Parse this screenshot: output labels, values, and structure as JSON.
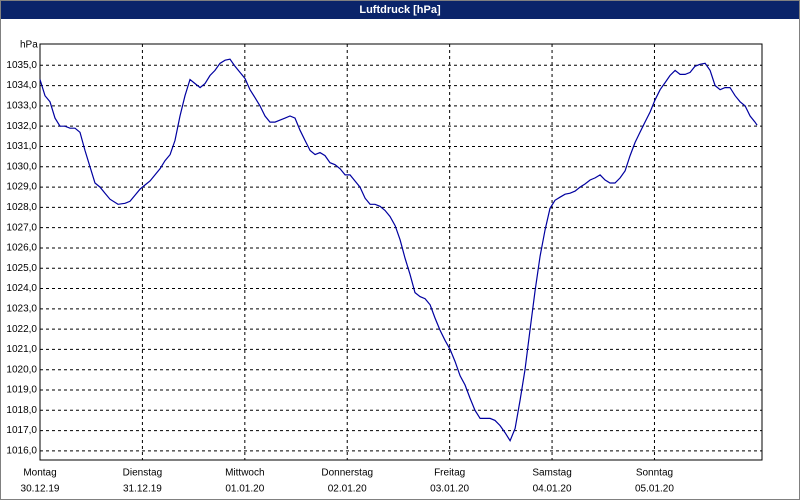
{
  "chart_data": {
    "type": "line",
    "title": "Luftdruck [hPa]",
    "y_label": "hPa",
    "grid": true,
    "xlim": [
      0,
      7.05
    ],
    "ylim": [
      1015.55,
      1036.05
    ],
    "yticks": [
      {
        "value": 1016,
        "label": "1016,0"
      },
      {
        "value": 1017,
        "label": "1017,0"
      },
      {
        "value": 1018,
        "label": "1018,0"
      },
      {
        "value": 1019,
        "label": "1019,0"
      },
      {
        "value": 1020,
        "label": "1020,0"
      },
      {
        "value": 1021,
        "label": "1021,0"
      },
      {
        "value": 1022,
        "label": "1022,0"
      },
      {
        "value": 1023,
        "label": "1023,0"
      },
      {
        "value": 1024,
        "label": "1024,0"
      },
      {
        "value": 1025,
        "label": "1025,0"
      },
      {
        "value": 1026,
        "label": "1026,0"
      },
      {
        "value": 1027,
        "label": "1027,0"
      },
      {
        "value": 1028,
        "label": "1028,0"
      },
      {
        "value": 1029,
        "label": "1029,0"
      },
      {
        "value": 1030,
        "label": "1030,0"
      },
      {
        "value": 1031,
        "label": "1031,0"
      },
      {
        "value": 1032,
        "label": "1032,0"
      },
      {
        "value": 1033,
        "label": "1033,0"
      },
      {
        "value": 1034,
        "label": "1034,0"
      },
      {
        "value": 1035,
        "label": "1035,0"
      }
    ],
    "xticks": [
      {
        "value": 0,
        "label": "Montag",
        "date": "30.12.19"
      },
      {
        "value": 1,
        "label": "Dienstag",
        "date": "31.12.19"
      },
      {
        "value": 2,
        "label": "Mittwoch",
        "date": "01.01.20"
      },
      {
        "value": 3,
        "label": "Donnerstag",
        "date": "02.01.20"
      },
      {
        "value": 4,
        "label": "Freitag",
        "date": "03.01.20"
      },
      {
        "value": 5,
        "label": "Samstag",
        "date": "04.01.20"
      },
      {
        "value": 6,
        "label": "Sonntag",
        "date": "05.01.20"
      }
    ],
    "x": [
      0,
      0.049,
      0.098,
      0.146,
      0.195,
      0.244,
      0.293,
      0.342,
      0.391,
      0.439,
      0.488,
      0.537,
      0.586,
      0.635,
      0.684,
      0.762,
      0.83,
      0.879,
      0.928,
      0.977,
      1.025,
      1.074,
      1.123,
      1.172,
      1.221,
      1.27,
      1.318,
      1.367,
      1.416,
      1.465,
      1.514,
      1.563,
      1.611,
      1.66,
      1.709,
      1.758,
      1.807,
      1.855,
      1.904,
      1.953,
      2.002,
      2.051,
      2.1,
      2.148,
      2.197,
      2.246,
      2.295,
      2.344,
      2.393,
      2.441,
      2.49,
      2.539,
      2.588,
      2.637,
      2.686,
      2.734,
      2.783,
      2.832,
      2.881,
      2.93,
      2.979,
      3.027,
      3.076,
      3.125,
      3.174,
      3.223,
      3.271,
      3.32,
      3.369,
      3.418,
      3.467,
      3.516,
      3.564,
      3.613,
      3.662,
      3.711,
      3.76,
      3.809,
      3.857,
      3.906,
      3.955,
      4.004,
      4.053,
      4.102,
      4.15,
      4.199,
      4.248,
      4.297,
      4.346,
      4.395,
      4.443,
      4.492,
      4.541,
      4.59,
      4.639,
      4.688,
      4.736,
      4.785,
      4.834,
      4.883,
      4.932,
      4.98,
      5.029,
      5.078,
      5.127,
      5.176,
      5.225,
      5.273,
      5.322,
      5.371,
      5.42,
      5.469,
      5.518,
      5.566,
      5.615,
      5.664,
      5.713,
      5.762,
      5.811,
      5.859,
      5.908,
      5.957,
      6.006,
      6.055,
      6.104,
      6.152,
      6.201,
      6.25,
      6.299,
      6.348,
      6.396,
      6.445,
      6.494,
      6.543,
      6.592,
      6.641,
      6.689,
      6.738,
      6.787,
      6.836,
      6.885,
      6.934,
      6.982,
      7.002
    ],
    "series": [
      {
        "color": "#0000a0",
        "values": [
          1034.3,
          1033.5,
          1033.2,
          1032.4,
          1032.0,
          1032.0,
          1031.9,
          1031.9,
          1031.7,
          1030.8,
          1030.0,
          1029.2,
          1029.0,
          1028.7,
          1028.4,
          1028.15,
          1028.2,
          1028.3,
          1028.6,
          1028.9,
          1029.1,
          1029.3,
          1029.6,
          1029.9,
          1030.3,
          1030.6,
          1031.3,
          1032.5,
          1033.5,
          1034.3,
          1034.1,
          1033.9,
          1034.1,
          1034.5,
          1034.75,
          1035.1,
          1035.25,
          1035.3,
          1034.95,
          1034.65,
          1034.35,
          1033.8,
          1033.4,
          1033.0,
          1032.5,
          1032.2,
          1032.2,
          1032.3,
          1032.4,
          1032.5,
          1032.4,
          1031.8,
          1031.3,
          1030.8,
          1030.6,
          1030.7,
          1030.55,
          1030.2,
          1030.1,
          1029.9,
          1029.6,
          1029.6,
          1029.3,
          1029.0,
          1028.45,
          1028.15,
          1028.15,
          1028.05,
          1027.85,
          1027.55,
          1027.1,
          1026.4,
          1025.5,
          1024.7,
          1023.8,
          1023.6,
          1023.5,
          1023.2,
          1022.55,
          1021.95,
          1021.45,
          1021.0,
          1020.4,
          1019.7,
          1019.25,
          1018.6,
          1018.0,
          1017.6,
          1017.6,
          1017.6,
          1017.5,
          1017.25,
          1016.9,
          1016.5,
          1017.1,
          1018.5,
          1020.0,
          1021.95,
          1023.9,
          1025.6,
          1026.9,
          1027.95,
          1028.35,
          1028.5,
          1028.65,
          1028.7,
          1028.8,
          1029.0,
          1029.15,
          1029.35,
          1029.45,
          1029.6,
          1029.35,
          1029.2,
          1029.2,
          1029.45,
          1029.8,
          1030.55,
          1031.2,
          1031.7,
          1032.2,
          1032.7,
          1033.3,
          1033.8,
          1034.15,
          1034.5,
          1034.75,
          1034.55,
          1034.55,
          1034.65,
          1034.95,
          1035.05,
          1035.1,
          1034.75,
          1034.0,
          1033.8,
          1033.9,
          1033.9,
          1033.5,
          1033.2,
          1033.0,
          1032.5,
          1032.2,
          1032.05
        ]
      }
    ]
  }
}
